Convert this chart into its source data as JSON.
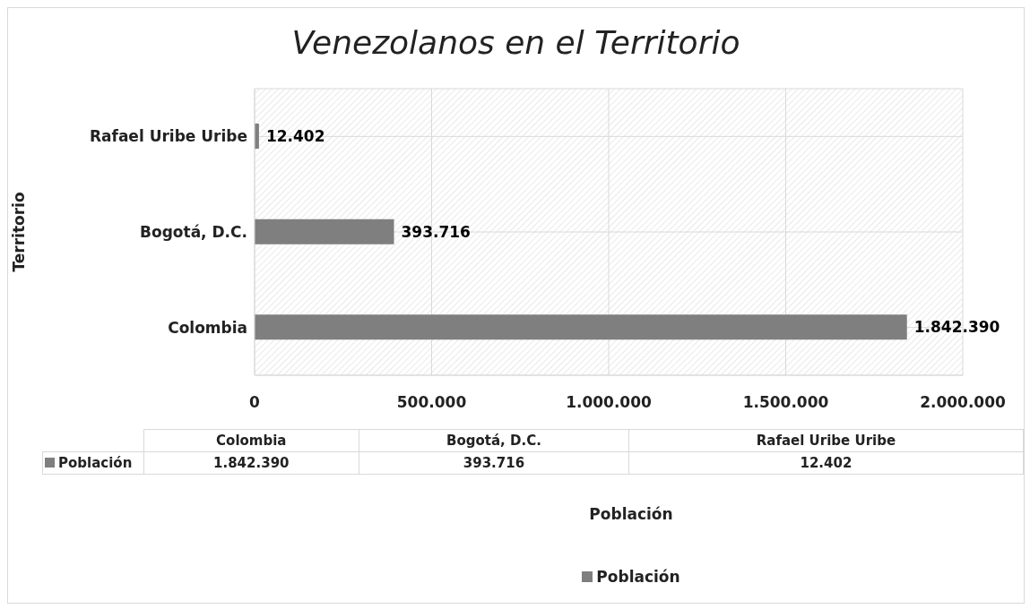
{
  "chart_data": {
    "type": "bar",
    "orientation": "horizontal",
    "title": "Venezolanos en el Territorio",
    "annotations": [
      "Población"
    ],
    "ylabel": "Territorio",
    "categories": [
      "Rafael Uribe Uribe",
      "Bogotá, D.C.",
      "Colombia"
    ],
    "series": [
      {
        "name": "Población",
        "color": "#7f7f7f",
        "values": [
          12402,
          393716,
          1842390
        ],
        "value_labels": [
          "12.402",
          "393.716",
          "1.842.390"
        ]
      }
    ],
    "xlim": [
      0,
      2000000
    ],
    "xticks": [
      {
        "value": 0,
        "label": "0"
      },
      {
        "value": 500000,
        "label": "500.000"
      },
      {
        "value": 1000000,
        "label": "1.000.000"
      },
      {
        "value": 1500000,
        "label": "1.500.000"
      },
      {
        "value": 2000000,
        "label": "2.000.000"
      }
    ],
    "grid": true,
    "legend": "bottom"
  }
}
